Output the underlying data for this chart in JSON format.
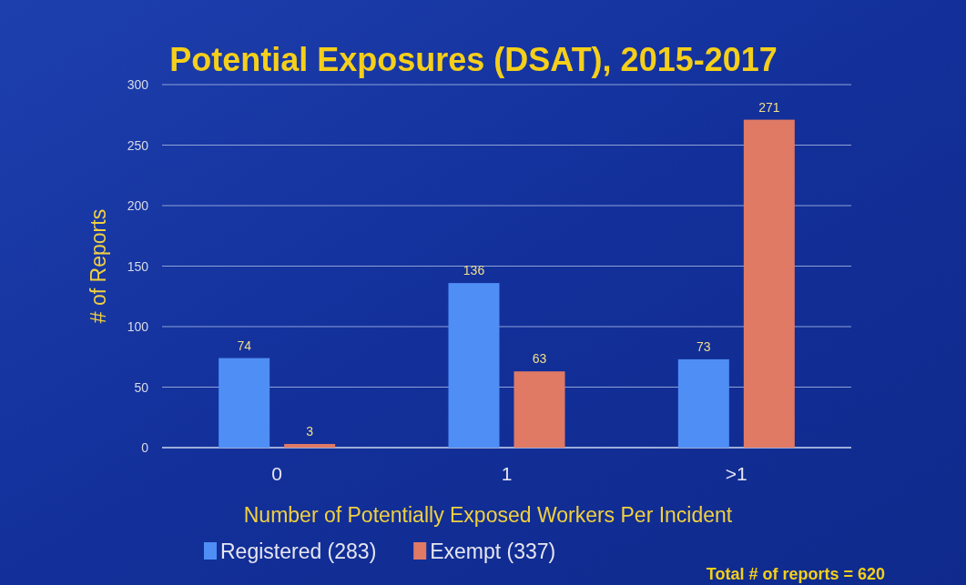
{
  "chart_data": {
    "type": "bar",
    "title": "Potential Exposures (DSAT), 2015-2017",
    "xlabel": "Number of Potentially Exposed Workers Per Incident",
    "ylabel": "# of Reports",
    "categories": [
      "0",
      "1",
      ">1"
    ],
    "series": [
      {
        "name": "Registered (283)",
        "color": "#4f8ef5",
        "values": [
          74,
          136,
          73
        ]
      },
      {
        "name": "Exempt (337)",
        "color": "#e07a65",
        "values": [
          3,
          63,
          271
        ]
      }
    ],
    "ylim": [
      0,
      300
    ],
    "yticks": [
      0,
      50,
      100,
      150,
      200,
      250,
      300
    ],
    "grid": "y",
    "legend": "bottom left",
    "data_labels": true,
    "annotations": [
      "Total # of reports = 620"
    ]
  }
}
